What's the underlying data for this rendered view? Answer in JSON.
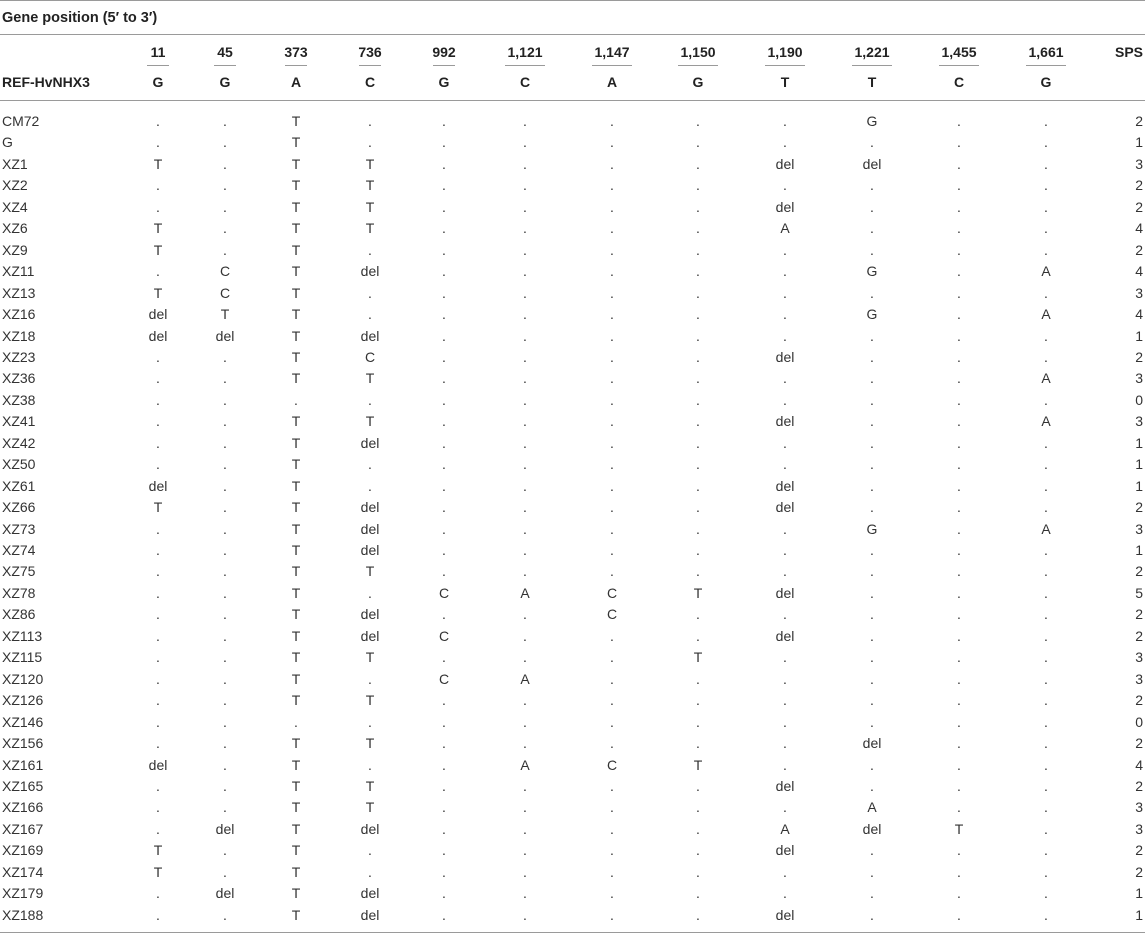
{
  "title": "Gene position (5′ to 3′)",
  "ref_label": "REF-HvNHX3",
  "sps_label": "SPS",
  "positions": [
    "11",
    "45",
    "373",
    "736",
    "992",
    "1,121",
    "1,147",
    "1,150",
    "1,190",
    "1,221",
    "1,455",
    "1,661"
  ],
  "ref_bases": [
    "G",
    "G",
    "A",
    "C",
    "G",
    "C",
    "A",
    "G",
    "T",
    "T",
    "C",
    "G"
  ],
  "rows": [
    {
      "name": "CM72",
      "cells": [
        ".",
        ".",
        "T",
        ".",
        ".",
        ".",
        ".",
        ".",
        ".",
        "G",
        ".",
        "."
      ],
      "sps": "2"
    },
    {
      "name": "G",
      "cells": [
        ".",
        ".",
        "T",
        ".",
        ".",
        ".",
        ".",
        ".",
        ".",
        ".",
        ".",
        "."
      ],
      "sps": "1"
    },
    {
      "name": "XZ1",
      "cells": [
        "T",
        ".",
        "T",
        "T",
        ".",
        ".",
        ".",
        ".",
        "del",
        "del",
        ".",
        "."
      ],
      "sps": "3"
    },
    {
      "name": "XZ2",
      "cells": [
        ".",
        ".",
        "T",
        "T",
        ".",
        ".",
        ".",
        ".",
        ".",
        ".",
        ".",
        "."
      ],
      "sps": "2"
    },
    {
      "name": "XZ4",
      "cells": [
        ".",
        ".",
        "T",
        "T",
        ".",
        ".",
        ".",
        ".",
        "del",
        ".",
        ".",
        "."
      ],
      "sps": "2"
    },
    {
      "name": "XZ6",
      "cells": [
        "T",
        ".",
        "T",
        "T",
        ".",
        ".",
        ".",
        ".",
        "A",
        ".",
        ".",
        "."
      ],
      "sps": "4"
    },
    {
      "name": "XZ9",
      "cells": [
        "T",
        ".",
        "T",
        ".",
        ".",
        ".",
        ".",
        ".",
        ".",
        ".",
        ".",
        "."
      ],
      "sps": "2"
    },
    {
      "name": "XZ11",
      "cells": [
        ".",
        "C",
        "T",
        "del",
        ".",
        ".",
        ".",
        ".",
        ".",
        "G",
        ".",
        "A"
      ],
      "sps": "4"
    },
    {
      "name": "XZ13",
      "cells": [
        "T",
        "C",
        "T",
        ".",
        ".",
        ".",
        ".",
        ".",
        ".",
        ".",
        ".",
        "."
      ],
      "sps": "3"
    },
    {
      "name": "XZ16",
      "cells": [
        "del",
        "T",
        "T",
        ".",
        ".",
        ".",
        ".",
        ".",
        ".",
        "G",
        ".",
        "A"
      ],
      "sps": "4"
    },
    {
      "name": "XZ18",
      "cells": [
        "del",
        "del",
        "T",
        "del",
        ".",
        ".",
        ".",
        ".",
        ".",
        ".",
        ".",
        "."
      ],
      "sps": "1"
    },
    {
      "name": "XZ23",
      "cells": [
        ".",
        ".",
        "T",
        "C",
        ".",
        ".",
        ".",
        ".",
        "del",
        ".",
        ".",
        "."
      ],
      "sps": "2"
    },
    {
      "name": "XZ36",
      "cells": [
        ".",
        ".",
        "T",
        "T",
        ".",
        ".",
        ".",
        ".",
        ".",
        ".",
        ".",
        "A"
      ],
      "sps": "3"
    },
    {
      "name": "XZ38",
      "cells": [
        ".",
        ".",
        ".",
        ".",
        ".",
        ".",
        ".",
        ".",
        ".",
        ".",
        ".",
        "."
      ],
      "sps": "0"
    },
    {
      "name": "XZ41",
      "cells": [
        ".",
        ".",
        "T",
        "T",
        ".",
        ".",
        ".",
        ".",
        "del",
        ".",
        ".",
        "A"
      ],
      "sps": "3"
    },
    {
      "name": "XZ42",
      "cells": [
        ".",
        ".",
        "T",
        "del",
        ".",
        ".",
        ".",
        ".",
        ".",
        ".",
        ".",
        "."
      ],
      "sps": "1"
    },
    {
      "name": "XZ50",
      "cells": [
        ".",
        ".",
        "T",
        ".",
        ".",
        ".",
        ".",
        ".",
        ".",
        ".",
        ".",
        "."
      ],
      "sps": "1"
    },
    {
      "name": "XZ61",
      "cells": [
        "del",
        ".",
        "T",
        ".",
        ".",
        ".",
        ".",
        ".",
        "del",
        ".",
        ".",
        "."
      ],
      "sps": "1"
    },
    {
      "name": "XZ66",
      "cells": [
        "T",
        ".",
        "T",
        "del",
        ".",
        ".",
        ".",
        ".",
        "del",
        ".",
        ".",
        "."
      ],
      "sps": "2"
    },
    {
      "name": "XZ73",
      "cells": [
        ".",
        ".",
        "T",
        "del",
        ".",
        ".",
        ".",
        ".",
        ".",
        "G",
        ".",
        "A"
      ],
      "sps": "3"
    },
    {
      "name": "XZ74",
      "cells": [
        ".",
        ".",
        "T",
        "del",
        ".",
        ".",
        ".",
        ".",
        ".",
        ".",
        ".",
        "."
      ],
      "sps": "1"
    },
    {
      "name": "XZ75",
      "cells": [
        ".",
        ".",
        "T",
        "T",
        ".",
        ".",
        ".",
        ".",
        ".",
        ".",
        ".",
        "."
      ],
      "sps": "2"
    },
    {
      "name": "XZ78",
      "cells": [
        ".",
        ".",
        "T",
        ".",
        "C",
        "A",
        "C",
        "T",
        "del",
        ".",
        ".",
        "."
      ],
      "sps": "5"
    },
    {
      "name": "XZ86",
      "cells": [
        ".",
        ".",
        "T",
        "del",
        ".",
        ".",
        "C",
        ".",
        ".",
        ".",
        ".",
        "."
      ],
      "sps": "2"
    },
    {
      "name": "XZ113",
      "cells": [
        ".",
        ".",
        "T",
        "del",
        "C",
        ".",
        ".",
        ".",
        "del",
        ".",
        ".",
        "."
      ],
      "sps": "2"
    },
    {
      "name": "XZ115",
      "cells": [
        ".",
        ".",
        "T",
        "T",
        ".",
        ".",
        ".",
        "T",
        ".",
        ".",
        ".",
        "."
      ],
      "sps": "3"
    },
    {
      "name": "XZ120",
      "cells": [
        ".",
        ".",
        "T",
        ".",
        "C",
        "A",
        ".",
        ".",
        ".",
        ".",
        ".",
        "."
      ],
      "sps": "3"
    },
    {
      "name": "XZ126",
      "cells": [
        ".",
        ".",
        "T",
        "T",
        ".",
        ".",
        ".",
        ".",
        ".",
        ".",
        ".",
        "."
      ],
      "sps": "2"
    },
    {
      "name": "XZ146",
      "cells": [
        ".",
        ".",
        ".",
        ".",
        ".",
        ".",
        ".",
        ".",
        ".",
        ".",
        ".",
        "."
      ],
      "sps": "0"
    },
    {
      "name": "XZ156",
      "cells": [
        ".",
        ".",
        "T",
        "T",
        ".",
        ".",
        ".",
        ".",
        ".",
        "del",
        ".",
        "."
      ],
      "sps": "2"
    },
    {
      "name": "XZ161",
      "cells": [
        "del",
        ".",
        "T",
        ".",
        ".",
        "A",
        "C",
        "T",
        ".",
        ".",
        ".",
        "."
      ],
      "sps": "4"
    },
    {
      "name": "XZ165",
      "cells": [
        ".",
        ".",
        "T",
        "T",
        ".",
        ".",
        ".",
        ".",
        "del",
        ".",
        ".",
        "."
      ],
      "sps": "2"
    },
    {
      "name": "XZ166",
      "cells": [
        ".",
        ".",
        "T",
        "T",
        ".",
        ".",
        ".",
        ".",
        ".",
        "A",
        ".",
        "."
      ],
      "sps": "3"
    },
    {
      "name": "XZ167",
      "cells": [
        ".",
        "del",
        "T",
        "del",
        ".",
        ".",
        ".",
        ".",
        "A",
        "del",
        "T",
        "."
      ],
      "sps": "3"
    },
    {
      "name": "XZ169",
      "cells": [
        "T",
        ".",
        "T",
        ".",
        ".",
        ".",
        ".",
        ".",
        "del",
        ".",
        ".",
        "."
      ],
      "sps": "2"
    },
    {
      "name": "XZ174",
      "cells": [
        "T",
        ".",
        "T",
        ".",
        ".",
        ".",
        ".",
        ".",
        ".",
        ".",
        ".",
        "."
      ],
      "sps": "2"
    },
    {
      "name": "XZ179",
      "cells": [
        ".",
        "del",
        "T",
        "del",
        ".",
        ".",
        ".",
        ".",
        ".",
        ".",
        ".",
        "."
      ],
      "sps": "1"
    },
    {
      "name": "XZ188",
      "cells": [
        ".",
        ".",
        "T",
        "del",
        ".",
        ".",
        ".",
        ".",
        "del",
        ".",
        ".",
        "."
      ],
      "sps": "1"
    }
  ]
}
